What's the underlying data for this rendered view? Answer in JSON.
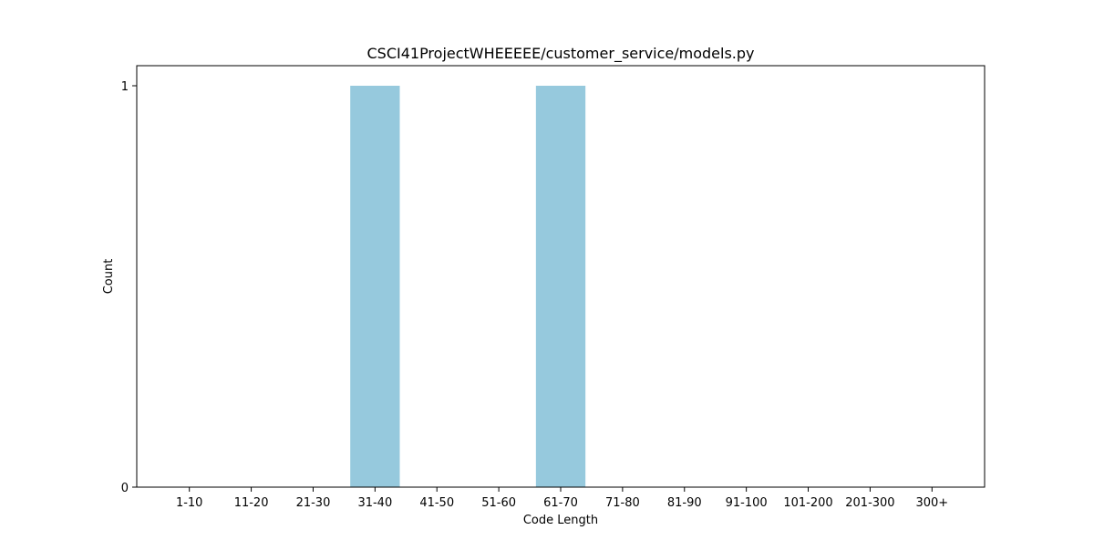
{
  "chart_data": {
    "type": "bar",
    "title": "CSCI41ProjectWHEEEEE/customer_service/models.py",
    "xlabel": "Code Length",
    "ylabel": "Count",
    "categories": [
      "1-10",
      "11-20",
      "21-30",
      "31-40",
      "41-50",
      "51-60",
      "61-70",
      "71-80",
      "81-90",
      "91-100",
      "101-200",
      "201-300",
      "300+"
    ],
    "values": [
      0,
      0,
      0,
      1,
      0,
      0,
      1,
      0,
      0,
      0,
      0,
      0,
      0
    ],
    "ylim": [
      0,
      1.05
    ],
    "yticks": [
      0,
      1
    ],
    "bar_color": "#96c9dd",
    "grid": false,
    "legend": "none"
  }
}
